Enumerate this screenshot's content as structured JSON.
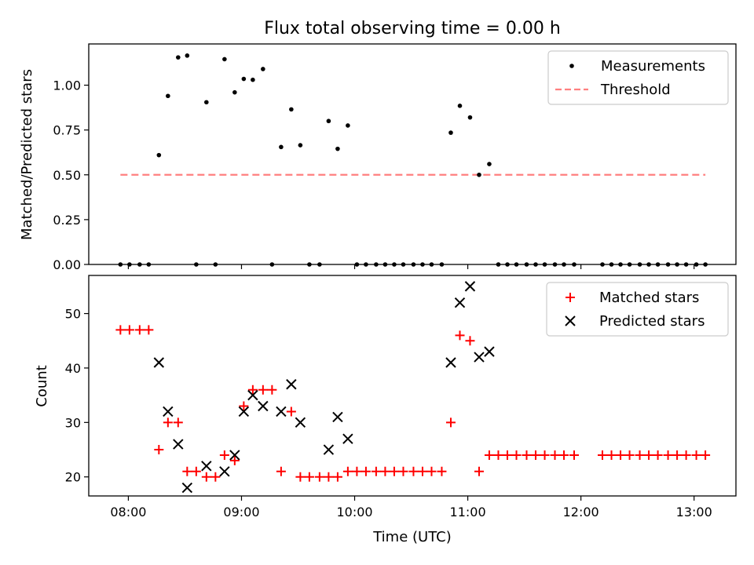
{
  "chart_data": [
    {
      "type": "scatter",
      "title": "Flux total observing time = 0.00 h",
      "xlabel": "",
      "ylabel": "Matched/Predicted stars",
      "xlim_hours": [
        7.65,
        13.37
      ],
      "ylim": [
        0,
        1.23
      ],
      "yticks": [
        0.0,
        0.25,
        0.5,
        0.75,
        1.0
      ],
      "ytick_labels": [
        "0.00",
        "0.25",
        "0.50",
        "0.75",
        "1.00"
      ],
      "legend_position": "top-right",
      "series": [
        {
          "name": "Measurements",
          "marker": "dot",
          "color": "#000000",
          "x_hours": [
            7.93,
            8.01,
            8.1,
            8.18,
            8.27,
            8.35,
            8.44,
            8.52,
            8.6,
            8.69,
            8.77,
            8.85,
            8.94,
            9.02,
            9.1,
            9.19,
            9.27,
            9.35,
            9.44,
            9.52,
            9.6,
            9.69,
            9.77,
            9.85,
            9.94,
            10.02,
            10.1,
            10.19,
            10.27,
            10.35,
            10.43,
            10.52,
            10.6,
            10.68,
            10.77,
            10.85,
            10.93,
            11.02,
            11.1,
            11.19,
            11.27,
            11.35,
            11.43,
            11.52,
            11.6,
            11.68,
            11.77,
            11.85,
            11.94,
            12.19,
            12.27,
            12.35,
            12.43,
            12.52,
            12.6,
            12.68,
            12.77,
            12.85,
            12.93,
            13.02,
            13.1
          ],
          "y": [
            0.0,
            0.0,
            0.0,
            0.0,
            0.61,
            0.94,
            1.155,
            1.165,
            0.0,
            0.905,
            0.0,
            1.145,
            0.96,
            1.035,
            1.03,
            1.09,
            0.0,
            0.655,
            0.865,
            0.665,
            0.0,
            0.0,
            0.8,
            0.645,
            0.775,
            0.0,
            0.0,
            0.0,
            0.0,
            0.0,
            0.0,
            0.0,
            0.0,
            0.0,
            0.0,
            0.735,
            0.885,
            0.82,
            0.5,
            0.56,
            0.0,
            0.0,
            0.0,
            0.0,
            0.0,
            0.0,
            0.0,
            0.0,
            0.0,
            0.0,
            0.0,
            0.0,
            0.0,
            0.0,
            0.0,
            0.0,
            0.0,
            0.0,
            0.0,
            0.0,
            0.0
          ]
        },
        {
          "name": "Threshold",
          "marker": "dashed-line",
          "color": "#ff7f7f",
          "x_hours": [
            7.93,
            13.1
          ],
          "y": [
            0.5,
            0.5
          ]
        }
      ]
    },
    {
      "type": "scatter",
      "title": "",
      "xlabel": "Time (UTC)",
      "ylabel": "Count",
      "xlim_hours": [
        7.65,
        13.37
      ],
      "ylim": [
        16.5,
        57
      ],
      "yticks": [
        20,
        30,
        40,
        50
      ],
      "ytick_labels": [
        "20",
        "30",
        "40",
        "50"
      ],
      "xticks_hours": [
        8,
        9,
        10,
        11,
        12,
        13
      ],
      "xtick_labels": [
        "08:00",
        "09:00",
        "10:00",
        "11:00",
        "12:00",
        "13:00"
      ],
      "legend_position": "top-right",
      "series": [
        {
          "name": "Matched stars",
          "marker": "plus",
          "color": "#ff0000",
          "x_hours": [
            7.93,
            8.01,
            8.1,
            8.18,
            8.27,
            8.35,
            8.44,
            8.52,
            8.6,
            8.69,
            8.77,
            8.85,
            8.94,
            9.02,
            9.1,
            9.19,
            9.27,
            9.35,
            9.44,
            9.52,
            9.6,
            9.69,
            9.77,
            9.85,
            9.94,
            10.02,
            10.1,
            10.19,
            10.27,
            10.35,
            10.43,
            10.52,
            10.6,
            10.68,
            10.77,
            10.85,
            10.93,
            11.02,
            11.1,
            11.19,
            11.27,
            11.35,
            11.43,
            11.52,
            11.6,
            11.68,
            11.77,
            11.85,
            11.94,
            12.19,
            12.27,
            12.35,
            12.43,
            12.52,
            12.6,
            12.68,
            12.77,
            12.85,
            12.93,
            13.02,
            13.1
          ],
          "y": [
            47,
            47,
            47,
            47,
            25,
            30,
            30,
            21,
            21,
            20,
            20,
            24,
            23,
            33,
            36,
            36,
            36,
            21,
            32,
            20,
            20,
            20,
            20,
            20,
            21,
            21,
            21,
            21,
            21,
            21,
            21,
            21,
            21,
            21,
            21,
            30,
            46,
            45,
            21,
            24,
            24,
            24,
            24,
            24,
            24,
            24,
            24,
            24,
            24,
            24,
            24,
            24,
            24,
            24,
            24,
            24,
            24,
            24,
            24,
            24,
            24
          ]
        },
        {
          "name": "Predicted stars",
          "marker": "x",
          "color": "#000000",
          "x_hours": [
            8.27,
            8.35,
            8.44,
            8.52,
            8.69,
            8.85,
            8.94,
            9.02,
            9.1,
            9.19,
            9.35,
            9.44,
            9.52,
            9.77,
            9.85,
            9.94,
            10.85,
            10.93,
            11.02,
            11.1,
            11.19
          ],
          "y": [
            41,
            32,
            26,
            18,
            22,
            21,
            24,
            32,
            35,
            33,
            32,
            37,
            30,
            25,
            31,
            27,
            41,
            52,
            55,
            42,
            43
          ]
        }
      ]
    }
  ]
}
